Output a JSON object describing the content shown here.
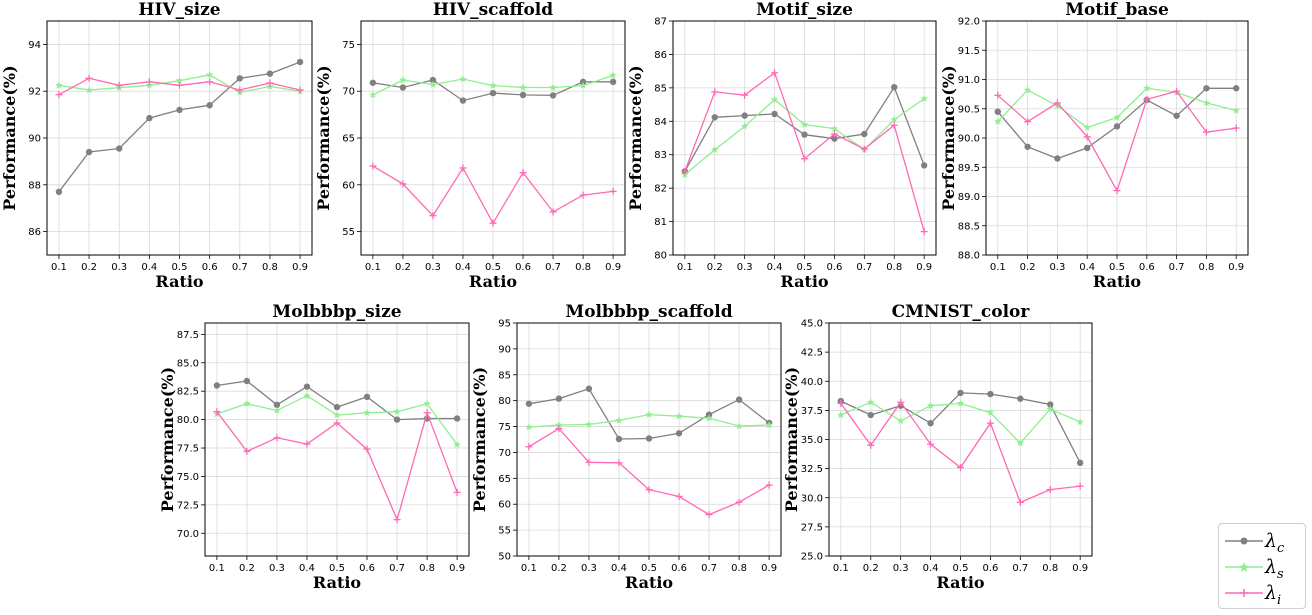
{
  "chart_data": [
    {
      "type": "line",
      "title": "HIV_size",
      "xlabel": "Ratio",
      "ylabel": "Performance(%)",
      "x": [
        0.1,
        0.2,
        0.3,
        0.4,
        0.5,
        0.6,
        0.7,
        0.8,
        0.9
      ],
      "xticks": [
        "0.1",
        "0.2",
        "0.3",
        "0.4",
        "0.5",
        "0.6",
        "0.7",
        "0.8",
        "0.9"
      ],
      "ylim": [
        85,
        95
      ],
      "yticks": [
        "86",
        "88",
        "90",
        "92",
        "94"
      ],
      "series": [
        {
          "name": "λc",
          "values": [
            87.7,
            89.4,
            89.55,
            90.85,
            91.2,
            91.4,
            92.55,
            92.75,
            93.25
          ]
        },
        {
          "name": "λs",
          "values": [
            92.25,
            92.05,
            92.15,
            92.25,
            92.45,
            92.7,
            91.95,
            92.2,
            92.0
          ]
        },
        {
          "name": "λi",
          "values": [
            91.85,
            92.55,
            92.25,
            92.4,
            92.25,
            92.4,
            92.05,
            92.35,
            92.05
          ]
        }
      ]
    },
    {
      "type": "line",
      "title": "HIV_scaffold",
      "xlabel": "Ratio",
      "ylabel": "Performance(%)",
      "x": [
        0.1,
        0.2,
        0.3,
        0.4,
        0.5,
        0.6,
        0.7,
        0.8,
        0.9
      ],
      "xticks": [
        "0.1",
        "0.2",
        "0.3",
        "0.4",
        "0.5",
        "0.6",
        "0.7",
        "0.8",
        "0.9"
      ],
      "ylim": [
        52.5,
        77.5
      ],
      "yticks": [
        "55",
        "60",
        "65",
        "70",
        "75"
      ],
      "series": [
        {
          "name": "λc",
          "values": [
            70.9,
            70.4,
            71.2,
            69.0,
            69.8,
            69.6,
            69.55,
            71.0,
            71.0
          ]
        },
        {
          "name": "λs",
          "values": [
            69.6,
            71.2,
            70.7,
            71.3,
            70.6,
            70.4,
            70.4,
            70.6,
            71.7
          ]
        },
        {
          "name": "λi",
          "values": [
            62.0,
            60.1,
            56.7,
            61.8,
            55.9,
            61.3,
            57.1,
            58.9,
            59.3
          ]
        }
      ]
    },
    {
      "type": "line",
      "title": "Motif_size",
      "xlabel": "Ratio",
      "ylabel": "Performance(%)",
      "x": [
        0.1,
        0.2,
        0.3,
        0.4,
        0.5,
        0.6,
        0.7,
        0.8,
        0.9
      ],
      "xticks": [
        "0.1",
        "0.2",
        "0.3",
        "0.4",
        "0.5",
        "0.6",
        "0.7",
        "0.8",
        "0.9"
      ],
      "ylim": [
        80,
        87
      ],
      "yticks": [
        "80",
        "81",
        "82",
        "83",
        "84",
        "85",
        "86",
        "87"
      ],
      "series": [
        {
          "name": "λc",
          "values": [
            82.5,
            84.12,
            84.17,
            84.22,
            83.6,
            83.48,
            83.62,
            85.02,
            82.68
          ]
        },
        {
          "name": "λs",
          "values": [
            82.4,
            83.15,
            83.85,
            84.65,
            83.9,
            83.78,
            83.15,
            84.05,
            84.68
          ]
        },
        {
          "name": "λi",
          "values": [
            82.5,
            84.88,
            84.78,
            85.45,
            82.88,
            83.62,
            83.17,
            83.88,
            80.7
          ]
        }
      ]
    },
    {
      "type": "line",
      "title": "Motif_base",
      "xlabel": "Ratio",
      "ylabel": "Performance(%)",
      "x": [
        0.1,
        0.2,
        0.3,
        0.4,
        0.5,
        0.6,
        0.7,
        0.8,
        0.9
      ],
      "xticks": [
        "0.1",
        "0.2",
        "0.3",
        "0.4",
        "0.5",
        "0.6",
        "0.7",
        "0.8",
        "0.9"
      ],
      "ylim": [
        88.0,
        92.0
      ],
      "yticks": [
        "88.0",
        "88.5",
        "89.0",
        "89.5",
        "90.0",
        "90.5",
        "91.0",
        "91.5",
        "92.0"
      ],
      "series": [
        {
          "name": "λc",
          "values": [
            90.45,
            89.85,
            89.65,
            89.83,
            90.2,
            90.65,
            90.38,
            90.85,
            90.85
          ]
        },
        {
          "name": "λs",
          "values": [
            90.28,
            90.82,
            90.55,
            90.18,
            90.35,
            90.85,
            90.78,
            90.6,
            90.47
          ]
        },
        {
          "name": "λi",
          "values": [
            90.73,
            90.28,
            90.6,
            90.02,
            89.1,
            90.66,
            90.8,
            90.1,
            90.17
          ]
        }
      ]
    },
    {
      "type": "line",
      "title": "Molbbbp_size",
      "xlabel": "Ratio",
      "ylabel": "Performance(%)",
      "x": [
        0.1,
        0.2,
        0.3,
        0.4,
        0.5,
        0.6,
        0.7,
        0.8,
        0.9
      ],
      "xticks": [
        "0.1",
        "0.2",
        "0.3",
        "0.4",
        "0.5",
        "0.6",
        "0.7",
        "0.8",
        "0.9"
      ],
      "ylim": [
        68.0,
        88.5
      ],
      "yticks": [
        "70.0",
        "72.5",
        "75.0",
        "77.5",
        "80.0",
        "82.5",
        "85.0",
        "87.5"
      ],
      "series": [
        {
          "name": "λc",
          "values": [
            83.0,
            83.4,
            81.3,
            82.9,
            81.1,
            82.0,
            80.0,
            80.1,
            80.1
          ]
        },
        {
          "name": "λs",
          "values": [
            80.5,
            81.4,
            80.8,
            82.1,
            80.4,
            80.6,
            80.7,
            81.4,
            77.8
          ]
        },
        {
          "name": "λi",
          "values": [
            80.7,
            77.2,
            78.4,
            77.85,
            79.7,
            77.4,
            71.2,
            80.6,
            73.6
          ]
        }
      ]
    },
    {
      "type": "line",
      "title": "Molbbbp_scaffold",
      "xlabel": "Ratio",
      "ylabel": "Performance(%)",
      "x": [
        0.1,
        0.2,
        0.3,
        0.4,
        0.5,
        0.6,
        0.7,
        0.8,
        0.9
      ],
      "xticks": [
        "0.1",
        "0.2",
        "0.3",
        "0.4",
        "0.5",
        "0.6",
        "0.7",
        "0.8",
        "0.9"
      ],
      "ylim": [
        50,
        95
      ],
      "yticks": [
        "50",
        "55",
        "60",
        "65",
        "70",
        "75",
        "80",
        "85",
        "90",
        "95"
      ],
      "series": [
        {
          "name": "λc",
          "values": [
            79.4,
            80.4,
            82.3,
            72.6,
            72.7,
            73.7,
            77.3,
            80.2,
            75.7
          ]
        },
        {
          "name": "λs",
          "values": [
            74.9,
            75.3,
            75.4,
            76.2,
            77.3,
            77.0,
            76.6,
            75.1,
            75.3
          ]
        },
        {
          "name": "λi",
          "values": [
            71.1,
            74.6,
            68.1,
            68.0,
            62.8,
            61.5,
            58.0,
            60.4,
            63.7
          ]
        }
      ]
    },
    {
      "type": "line",
      "title": "CMNIST_color",
      "xlabel": "Ratio",
      "ylabel": "Performance(%)",
      "x": [
        0.1,
        0.2,
        0.3,
        0.4,
        0.5,
        0.6,
        0.7,
        0.8,
        0.9
      ],
      "xticks": [
        "0.1",
        "0.2",
        "0.3",
        "0.4",
        "0.5",
        "0.6",
        "0.7",
        "0.8",
        "0.9"
      ],
      "ylim": [
        25.0,
        45.0
      ],
      "yticks": [
        "25.0",
        "27.5",
        "30.0",
        "32.5",
        "35.0",
        "37.5",
        "40.0",
        "42.5",
        "45.0"
      ],
      "series": [
        {
          "name": "λc",
          "values": [
            38.3,
            37.1,
            37.9,
            36.4,
            39.0,
            38.9,
            38.5,
            38.0,
            33.0
          ]
        },
        {
          "name": "λs",
          "values": [
            37.1,
            38.2,
            36.6,
            37.9,
            38.1,
            37.3,
            34.7,
            37.6,
            36.5
          ]
        },
        {
          "name": "λi",
          "values": [
            38.1,
            34.5,
            38.2,
            34.6,
            32.6,
            36.4,
            29.6,
            30.7,
            31.0
          ]
        }
      ]
    }
  ],
  "legend": {
    "items": [
      {
        "base": "λ",
        "sub": "c",
        "color": "#808080",
        "marker": "circle"
      },
      {
        "base": "λ",
        "sub": "s",
        "color": "#90EE90",
        "marker": "star"
      },
      {
        "base": "λ",
        "sub": "i",
        "color": "#FF69B4",
        "marker": "plus"
      }
    ]
  },
  "series_colors": [
    "#808080",
    "#90EE90",
    "#FF69B4"
  ]
}
